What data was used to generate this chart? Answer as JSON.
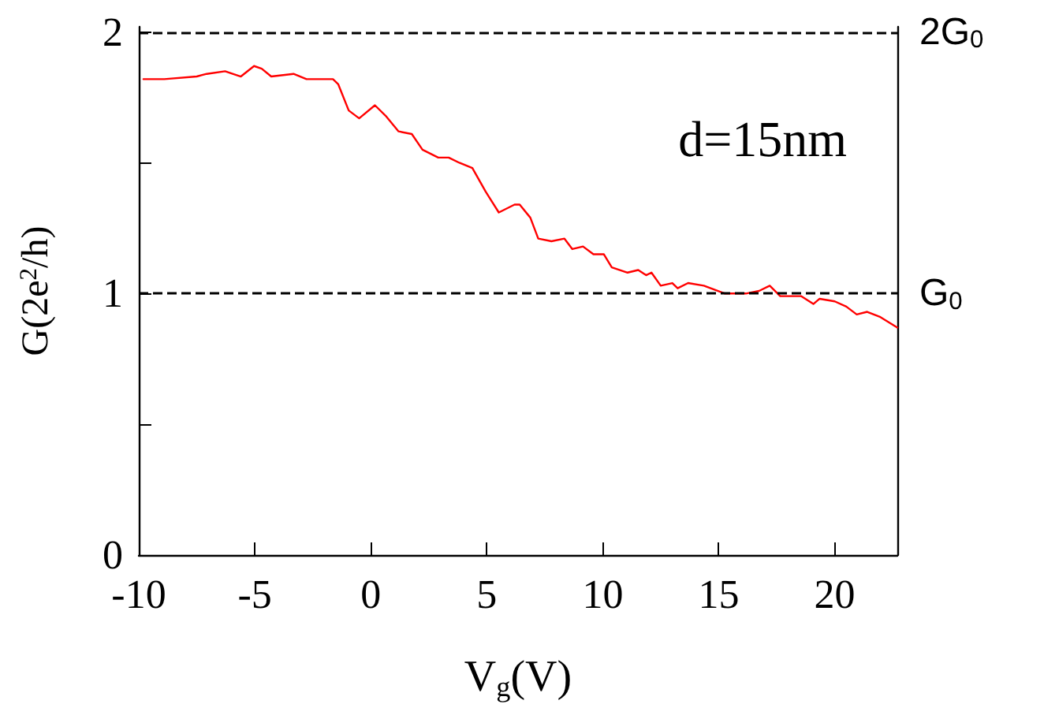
{
  "chart_data": {
    "type": "line",
    "xlabel": "V$_{g}$(V)",
    "ylabel": "G(2e$^{2}$/h)",
    "annotations": [
      "d=15nm"
    ],
    "xlim": [
      -10,
      22.7
    ],
    "xticks": [
      -10,
      -5,
      0,
      5,
      10,
      15,
      20
    ],
    "ylim": [
      0,
      2.02
    ],
    "yticks": [
      0,
      {
        "value": 0.5,
        "label": null
      },
      1,
      {
        "value": 1.5,
        "label": null
      },
      2
    ],
    "grid": false,
    "marker": "none",
    "line_style": "solid",
    "ref_lines": [
      {
        "axis": "y",
        "value": 2,
        "label": "2G$_{0}$",
        "color": "#000000",
        "line_style": "dashed"
      },
      {
        "axis": "y",
        "value": 1,
        "label": "G$_{0}$",
        "color": "#000000",
        "line_style": "dashed"
      }
    ],
    "series": [
      {
        "color": "#ff0000",
        "x": [
          -9.8,
          -8.9,
          -7.5,
          -7.07,
          -6.28,
          -5.6,
          -5.03,
          -4.7,
          -4.29,
          -3.33,
          -2.77,
          -1.63,
          -1.4,
          -0.95,
          -0.5,
          0.18,
          0.64,
          1.2,
          1.77,
          2.23,
          2.91,
          3.36,
          3.82,
          4.38,
          4.95,
          5.52,
          6.2,
          6.42,
          6.88,
          7.22,
          7.79,
          8.35,
          8.69,
          9.15,
          9.6,
          10.05,
          10.39,
          11.07,
          11.53,
          11.87,
          12.1,
          12.5,
          13.0,
          13.23,
          13.68,
          14.36,
          15.27,
          16.17,
          16.74,
          17.2,
          17.65,
          18.56,
          19.08,
          19.35,
          20.0,
          20.5,
          20.95,
          21.4,
          21.97,
          22.7
        ],
        "values": [
          1.82,
          1.82,
          1.83,
          1.84,
          1.85,
          1.83,
          1.87,
          1.86,
          1.83,
          1.84,
          1.82,
          1.82,
          1.8,
          1.7,
          1.67,
          1.72,
          1.68,
          1.62,
          1.61,
          1.55,
          1.52,
          1.52,
          1.5,
          1.48,
          1.39,
          1.31,
          1.34,
          1.34,
          1.29,
          1.21,
          1.2,
          1.21,
          1.17,
          1.18,
          1.15,
          1.15,
          1.1,
          1.08,
          1.09,
          1.07,
          1.08,
          1.03,
          1.04,
          1.02,
          1.04,
          1.03,
          1.0,
          1.0,
          1.01,
          1.03,
          0.99,
          0.99,
          0.96,
          0.98,
          0.97,
          0.95,
          0.92,
          0.93,
          0.91,
          0.87
        ]
      }
    ]
  }
}
